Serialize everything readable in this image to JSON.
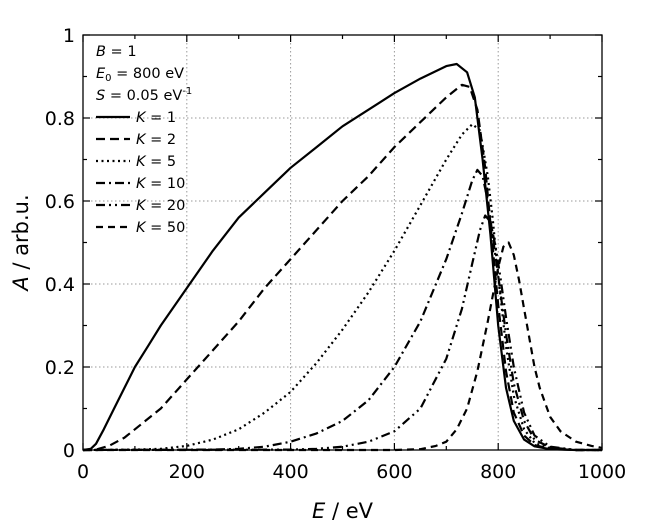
{
  "chart_data": {
    "type": "line",
    "title": "",
    "xlabel_var": "E",
    "xlabel_unit": "/ eV",
    "ylabel_var": "A",
    "ylabel_unit": "/ arb.u.",
    "xlim": [
      0,
      1000
    ],
    "ylim": [
      0,
      1
    ],
    "grid": true,
    "x_ticks": [
      0,
      200,
      400,
      600,
      800,
      1000
    ],
    "x_tick_labels": [
      "0",
      "200",
      "400",
      "600",
      "800",
      "1000"
    ],
    "y_ticks": [
      0,
      0.2,
      0.4,
      0.6,
      0.8,
      1
    ],
    "y_tick_labels": [
      "0",
      "0.2",
      "0.4",
      "0.6",
      "0.8",
      "1"
    ],
    "x_minor_step": 100,
    "y_minor_step": 0.1,
    "legend_position": "top-left",
    "parameters": [
      {
        "symbol": "B",
        "sub": "",
        "value": " = 1",
        "sup": ""
      },
      {
        "symbol": "E",
        "sub": "0",
        "value": " = 800 eV",
        "sup": ""
      },
      {
        "symbol": "S",
        "sub": "",
        "value": " = 0.05 eV",
        "sup": "-1"
      }
    ],
    "series": [
      {
        "name": "K = 1",
        "var": "K",
        "value": " = 1",
        "dash": "none",
        "x": [
          0,
          15,
          25,
          40,
          60,
          80,
          100,
          125,
          150,
          200,
          250,
          300,
          350,
          400,
          450,
          500,
          550,
          600,
          650,
          700,
          720,
          740,
          755,
          770,
          785,
          800,
          815,
          830,
          850,
          870,
          900,
          950,
          1000
        ],
        "y": [
          0,
          0.003,
          0.015,
          0.05,
          0.1,
          0.15,
          0.2,
          0.25,
          0.3,
          0.39,
          0.48,
          0.56,
          0.62,
          0.68,
          0.73,
          0.78,
          0.82,
          0.86,
          0.895,
          0.925,
          0.93,
          0.91,
          0.85,
          0.7,
          0.52,
          0.3,
          0.15,
          0.07,
          0.025,
          0.009,
          0.002,
          0,
          0
        ]
      },
      {
        "name": "K = 2",
        "var": "K",
        "value": " = 2",
        "dash": "9 5",
        "x": [
          0,
          25,
          50,
          80,
          100,
          150,
          200,
          250,
          300,
          350,
          400,
          450,
          500,
          550,
          600,
          650,
          700,
          730,
          745,
          760,
          775,
          790,
          800,
          815,
          830,
          850,
          870,
          900,
          950,
          1000
        ],
        "y": [
          0,
          0.001,
          0.01,
          0.03,
          0.05,
          0.1,
          0.17,
          0.24,
          0.31,
          0.39,
          0.46,
          0.53,
          0.6,
          0.66,
          0.73,
          0.79,
          0.85,
          0.88,
          0.875,
          0.82,
          0.68,
          0.48,
          0.35,
          0.19,
          0.09,
          0.035,
          0.012,
          0.003,
          0,
          0
        ]
      },
      {
        "name": "K = 5",
        "var": "K",
        "value": " = 5",
        "dash": "2 3.5",
        "x": [
          0,
          100,
          150,
          200,
          250,
          300,
          350,
          400,
          450,
          500,
          550,
          600,
          650,
          700,
          730,
          750,
          765,
          780,
          790,
          800,
          815,
          830,
          850,
          870,
          900,
          950,
          1000
        ],
        "y": [
          0,
          0.001,
          0.003,
          0.01,
          0.025,
          0.05,
          0.09,
          0.14,
          0.21,
          0.29,
          0.38,
          0.48,
          0.59,
          0.7,
          0.76,
          0.785,
          0.77,
          0.66,
          0.55,
          0.42,
          0.25,
          0.13,
          0.05,
          0.017,
          0.004,
          0,
          0
        ]
      },
      {
        "name": "K = 10",
        "var": "K",
        "value": " = 10",
        "dash": "9 4 2 4",
        "x": [
          0,
          250,
          300,
          350,
          400,
          450,
          500,
          550,
          600,
          650,
          700,
          730,
          750,
          760,
          770,
          780,
          790,
          800,
          815,
          830,
          850,
          870,
          900,
          950,
          1000
        ],
        "y": [
          0,
          0.001,
          0.003,
          0.008,
          0.02,
          0.04,
          0.07,
          0.12,
          0.2,
          0.31,
          0.46,
          0.57,
          0.65,
          0.675,
          0.66,
          0.6,
          0.51,
          0.42,
          0.28,
          0.16,
          0.07,
          0.025,
          0.006,
          0,
          0
        ]
      },
      {
        "name": "K = 20",
        "var": "K",
        "value": " = 20",
        "dash": "9 4 2 4 2 4",
        "x": [
          0,
          400,
          450,
          500,
          550,
          600,
          650,
          700,
          730,
          750,
          765,
          775,
          785,
          795,
          805,
          815,
          830,
          850,
          870,
          900,
          950,
          1000
        ],
        "y": [
          0,
          0.001,
          0.003,
          0.008,
          0.02,
          0.045,
          0.1,
          0.22,
          0.34,
          0.45,
          0.53,
          0.565,
          0.55,
          0.49,
          0.41,
          0.32,
          0.2,
          0.09,
          0.035,
          0.008,
          0,
          0
        ]
      },
      {
        "name": "K = 50",
        "var": "K",
        "value": " = 50",
        "dash": "7 5",
        "x": [
          0,
          600,
          650,
          680,
          700,
          720,
          740,
          760,
          780,
          800,
          810,
          820,
          830,
          840,
          850,
          860,
          870,
          880,
          900,
          920,
          950,
          980,
          1000
        ],
        "y": [
          0,
          0,
          0.002,
          0.01,
          0.02,
          0.05,
          0.1,
          0.19,
          0.31,
          0.44,
          0.49,
          0.5,
          0.47,
          0.41,
          0.34,
          0.27,
          0.2,
          0.15,
          0.08,
          0.045,
          0.02,
          0.01,
          0.005
        ]
      }
    ]
  }
}
